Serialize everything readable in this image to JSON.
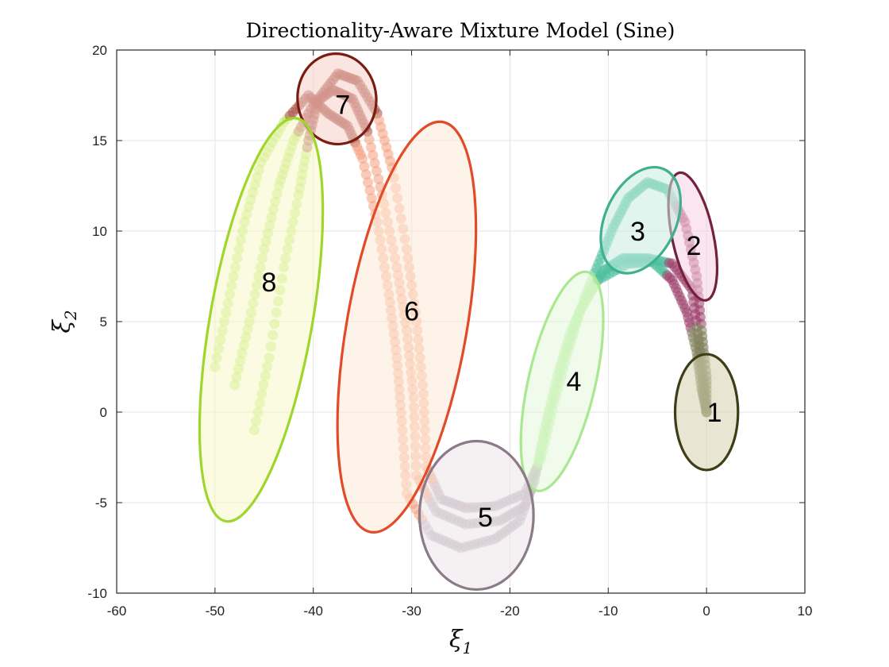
{
  "chart_data": {
    "type": "scatter",
    "title": "Directionality-Aware Mixture Model (Sine)",
    "xlabel": "ξ",
    "xlabel_sub": "1",
    "ylabel": "ξ",
    "ylabel_sub": "2",
    "xlim": [
      -60,
      10
    ],
    "ylim": [
      -10,
      20
    ],
    "xticks": [
      -60,
      -50,
      -40,
      -30,
      -20,
      -10,
      0,
      10
    ],
    "yticks": [
      -10,
      -5,
      0,
      5,
      10,
      15,
      20
    ],
    "grid": true,
    "clusters": [
      {
        "label": "1",
        "cx": 0,
        "cy": 0,
        "rx": 3.2,
        "ry": 3.2,
        "angle": 0,
        "label_x": 0.8,
        "label_y": 0,
        "edge": "#3d3d18",
        "fill": "#d6d2ae",
        "points": "#7d7d5a"
      },
      {
        "label": "2",
        "cx": -1.4,
        "cy": 9.7,
        "rx": 2.1,
        "ry": 3.6,
        "angle": -12,
        "label_x": -1.3,
        "label_y": 9.2,
        "edge": "#74203f",
        "fill": "#f7cfe0",
        "points": "#9a3d6a"
      },
      {
        "label": "3",
        "cx": -6.7,
        "cy": 10.6,
        "rx": 3.6,
        "ry": 3.1,
        "angle": 25,
        "label_x": -7,
        "label_y": 10,
        "edge": "#3fb08f",
        "fill": "#c9ece0",
        "points": "#4fbf9f"
      },
      {
        "label": "4",
        "cx": -14.7,
        "cy": 1.7,
        "rx": 3.4,
        "ry": 6.2,
        "angle": 13,
        "label_x": -13.5,
        "label_y": 1.7,
        "edge": "#a9e890",
        "fill": "#e3f7da",
        "points": "#b8ee9f"
      },
      {
        "label": "5",
        "cx": -23.4,
        "cy": -5.7,
        "rx": 5.8,
        "ry": 4.1,
        "angle": 0,
        "label_x": -22.5,
        "label_y": -5.8,
        "edge": "#8b7a88",
        "fill": "#ece6ea",
        "points": "#b9adb8"
      },
      {
        "label": "6",
        "cx": -30.5,
        "cy": 4.7,
        "rx": 6.1,
        "ry": 11.5,
        "angle": 10,
        "label_x": -30,
        "label_y": 5.6,
        "edge": "#e24a28",
        "fill": "#fde9d6",
        "points": "#f59e80"
      },
      {
        "label": "7",
        "cx": -37.6,
        "cy": 17.3,
        "rx": 4,
        "ry": 2.5,
        "angle": -5,
        "label_x": -37,
        "label_y": 17,
        "edge": "#7a1c12",
        "fill": "#f6cfc8",
        "points": "#a64d42"
      },
      {
        "label": "8",
        "cx": -45.3,
        "cy": 5.1,
        "rx": 5.2,
        "ry": 11.3,
        "angle": 10,
        "label_x": -44.5,
        "label_y": 7.2,
        "edge": "#9fd62b",
        "fill": "#f5f8c9",
        "points": "#b9e65f"
      }
    ],
    "trajectories": [
      [
        [
          -46,
          -1
        ],
        [
          -44.5,
          3
        ],
        [
          -43,
          8
        ],
        [
          -41.5,
          12
        ],
        [
          -40.5,
          15
        ],
        [
          -39.5,
          17.3
        ],
        [
          -37.5,
          18.7
        ],
        [
          -35.5,
          18.3
        ],
        [
          -33.5,
          16.5
        ],
        [
          -32,
          13.5
        ],
        [
          -30.5,
          9
        ],
        [
          -29.5,
          5
        ],
        [
          -28.8,
          1
        ],
        [
          -28.5,
          -3
        ],
        [
          -27,
          -4.8
        ],
        [
          -24.5,
          -5.3
        ],
        [
          -21.5,
          -5.2
        ],
        [
          -18.5,
          -4.5
        ],
        [
          -16.8,
          -2.5
        ],
        [
          -15.5,
          0.5
        ],
        [
          -14,
          3.5
        ],
        [
          -12.5,
          6.2
        ],
        [
          -11,
          8.2
        ],
        [
          -9.5,
          10.2
        ],
        [
          -8,
          11.8
        ],
        [
          -6,
          12.7
        ],
        [
          -4,
          12.3
        ],
        [
          -2.2,
          10.5
        ],
        [
          -1,
          7.5
        ],
        [
          -0.5,
          4.5
        ],
        [
          0,
          2
        ],
        [
          0,
          0
        ]
      ],
      [
        [
          -48,
          1.5
        ],
        [
          -46.5,
          5
        ],
        [
          -45,
          9
        ],
        [
          -43.5,
          12.5
        ],
        [
          -42,
          15
        ],
        [
          -40,
          17
        ],
        [
          -38,
          17.8
        ],
        [
          -36,
          17.3
        ],
        [
          -34.5,
          15.5
        ],
        [
          -33,
          12
        ],
        [
          -31.5,
          8
        ],
        [
          -30.5,
          4.5
        ],
        [
          -29.8,
          0.8
        ],
        [
          -29.5,
          -3.5
        ],
        [
          -27.5,
          -5.5
        ],
        [
          -24.5,
          -6.2
        ],
        [
          -21,
          -6
        ],
        [
          -18.5,
          -5.2
        ],
        [
          -17.2,
          -3
        ],
        [
          -16,
          0
        ],
        [
          -14.5,
          3
        ],
        [
          -13,
          5.5
        ],
        [
          -11,
          7.3
        ],
        [
          -8,
          8.2
        ],
        [
          -5.5,
          8.3
        ],
        [
          -3.5,
          7.3
        ],
        [
          -2,
          5.5
        ],
        [
          -1,
          3.3
        ],
        [
          -0.5,
          1.3
        ],
        [
          0,
          0
        ]
      ],
      [
        [
          -50,
          2.5
        ],
        [
          -48.5,
          6.5
        ],
        [
          -47,
          10.5
        ],
        [
          -45.3,
          13.8
        ],
        [
          -43,
          16
        ],
        [
          -40.5,
          17.5
        ],
        [
          -38.5,
          16.5
        ],
        [
          -36.5,
          15.8
        ],
        [
          -35,
          14
        ],
        [
          -33.5,
          10.5
        ],
        [
          -32.3,
          6.5
        ],
        [
          -31.5,
          3
        ],
        [
          -31,
          -0.5
        ],
        [
          -30.5,
          -4.5
        ],
        [
          -28,
          -6.8
        ],
        [
          -25,
          -7.5
        ],
        [
          -21.5,
          -7
        ],
        [
          -19,
          -6
        ],
        [
          -17.5,
          -3.8
        ],
        [
          -16.5,
          -1
        ],
        [
          -15.2,
          2
        ],
        [
          -13.8,
          4.5
        ],
        [
          -12,
          6.5
        ],
        [
          -10.5,
          7.8
        ],
        [
          -8.5,
          8.5
        ],
        [
          -6,
          8.5
        ],
        [
          -3.5,
          8.2
        ],
        [
          -1.5,
          6.8
        ],
        [
          -0.8,
          4
        ],
        [
          -0.3,
          1.5
        ],
        [
          0,
          0
        ]
      ]
    ]
  }
}
